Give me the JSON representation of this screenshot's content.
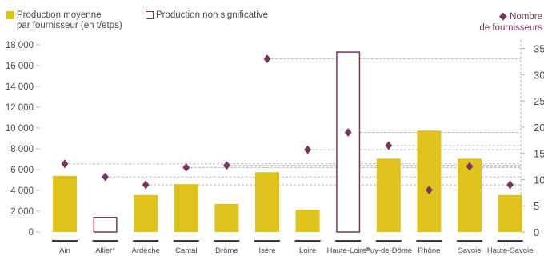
{
  "legend": {
    "avg_line1": "Production moyenne",
    "avg_line2": "par fournisseur (en t/etps)",
    "nonsig": "Production non significative",
    "count_line1": "Nombre",
    "count_line2": "de fournisseurs"
  },
  "colors": {
    "bar": "#dfc21b",
    "marker": "#7a3460",
    "outline": "#7a3460",
    "grid": "#b5b5b5",
    "tick_text": "#4a4a4a",
    "baseline": "#3a3a3a"
  },
  "chart_data": {
    "type": "bar",
    "categories": [
      "Ain",
      "Allier*",
      "Ardèche",
      "Cantal",
      "Drôme",
      "Isère",
      "Loire",
      "Haute-Loire*",
      "Puy-de-Dôme",
      "Rhône",
      "Savoie",
      "Haute-Savoie"
    ],
    "series": [
      {
        "name": "Production moyenne par fournisseur (en t/etps)",
        "type": "bar",
        "axis": "left",
        "values": [
          5400,
          1400,
          3550,
          4600,
          2700,
          5750,
          2150,
          17300,
          7050,
          9750,
          7050,
          3550
        ],
        "non_significant": [
          false,
          true,
          false,
          false,
          false,
          false,
          false,
          true,
          false,
          false,
          false,
          false
        ]
      },
      {
        "name": "Nombre de fournisseurs",
        "type": "scatter",
        "axis": "right",
        "marker": "diamond",
        "values": [
          13,
          10.5,
          9,
          12.3,
          12.7,
          33,
          15.7,
          19,
          16.5,
          8,
          12.5,
          9
        ]
      }
    ],
    "y_left": {
      "ticks": [
        "0",
        "2 000",
        "4 000",
        "6 000",
        "8 000",
        "10 000",
        "12 000",
        "14 000",
        "16 000",
        "18 000"
      ],
      "range": [
        0,
        18000
      ]
    },
    "y_right": {
      "ticks": [
        "0",
        "5",
        "10",
        "15",
        "20",
        "25",
        "30",
        "35"
      ],
      "range": [
        0,
        36
      ]
    },
    "grid": "dashed reference lines from diamonds to right axis",
    "legend_position": "top"
  }
}
